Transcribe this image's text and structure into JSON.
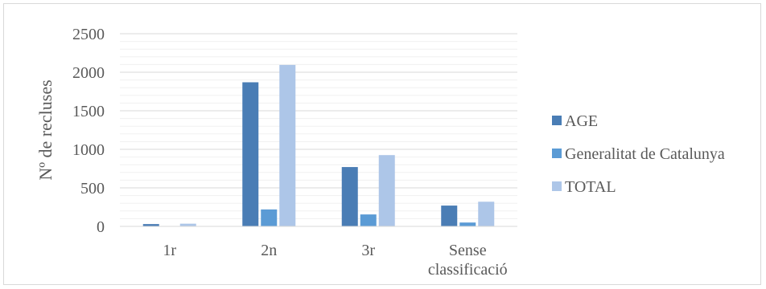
{
  "chart_data": {
    "type": "bar",
    "categories": [
      [
        "1r"
      ],
      [
        "2n"
      ],
      [
        "3r"
      ],
      [
        "Sense",
        "classificació"
      ]
    ],
    "series": [
      {
        "name": "AGE",
        "values": [
          30,
          1870,
          770,
          270
        ],
        "color": "#4a7db5"
      },
      {
        "name": "Generalitat de Catalunya",
        "values": [
          5,
          220,
          155,
          50
        ],
        "color": "#5b9bd5"
      },
      {
        "name": "TOTAL",
        "values": [
          35,
          2095,
          925,
          320
        ],
        "color": "#adc6e8"
      }
    ],
    "title": "",
    "xlabel": "",
    "ylabel": "Nº de recluses",
    "ylim": [
      0,
      2500
    ],
    "yticks": [
      0,
      500,
      1000,
      1500,
      2000,
      2500
    ],
    "ytick_labels": [
      "0",
      "500",
      "1000",
      "1500",
      "2000",
      "2500"
    ],
    "grid": "horizontal major and minor",
    "legend": "right"
  }
}
